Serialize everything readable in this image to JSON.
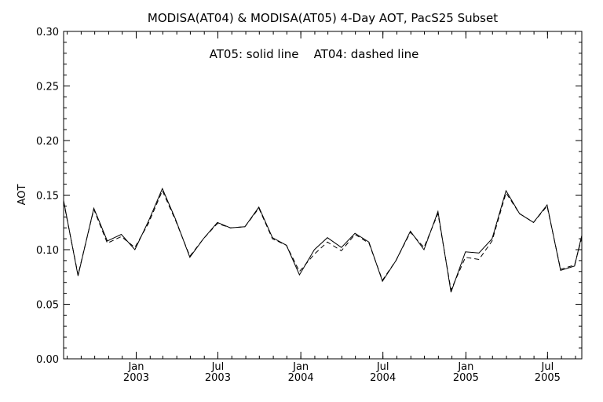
{
  "chart_data": {
    "type": "line",
    "title": "MODISA(AT04) & MODISA(AT05) 4-Day AOT, PacS25 Subset",
    "annotation": "AT05: solid line    AT04: dashed line",
    "xlabel": "",
    "ylabel": "AOT",
    "ylim": [
      0.0,
      0.3
    ],
    "yticks": [
      "0.00",
      "0.05",
      "0.10",
      "0.15",
      "0.20",
      "0.25",
      "0.30"
    ],
    "xlim": [
      "2002-07-24",
      "2005-09-15"
    ],
    "xticks": [
      {
        "date": "2003-01-01",
        "month": "Jan",
        "year": "2003"
      },
      {
        "date": "2003-07-01",
        "month": "Jul",
        "year": "2003"
      },
      {
        "date": "2004-01-01",
        "month": "Jan",
        "year": "2004"
      },
      {
        "date": "2004-07-01",
        "month": "Jul",
        "year": "2004"
      },
      {
        "date": "2005-01-01",
        "month": "Jan",
        "year": "2005"
      },
      {
        "date": "2005-07-01",
        "month": "Jul",
        "year": "2005"
      }
    ],
    "grid": false,
    "series": [
      {
        "name": "AT05",
        "style": "solid",
        "x": [
          "2002-07-24",
          "2002-08-25",
          "2002-09-29",
          "2002-10-29",
          "2002-11-29",
          "2002-12-29",
          "2003-01-28",
          "2003-02-28",
          "2003-03-29",
          "2003-04-30",
          "2003-05-30",
          "2003-06-30",
          "2003-07-29",
          "2003-08-30",
          "2003-09-30",
          "2003-10-30",
          "2003-11-30",
          "2003-12-29",
          "2004-01-31",
          "2004-02-29",
          "2004-03-31",
          "2004-04-30",
          "2004-05-31",
          "2004-06-30",
          "2004-07-30",
          "2004-08-31",
          "2004-09-30",
          "2004-10-31",
          "2004-11-29",
          "2004-12-31",
          "2005-01-30",
          "2005-02-28",
          "2005-03-31",
          "2005-04-30",
          "2005-05-31",
          "2005-06-30",
          "2005-07-30",
          "2005-08-30",
          "2005-09-15"
        ],
        "y": [
          0.145,
          0.076,
          0.138,
          0.108,
          0.114,
          0.1,
          0.126,
          0.156,
          0.128,
          0.093,
          0.11,
          0.125,
          0.12,
          0.121,
          0.139,
          0.111,
          0.104,
          0.077,
          0.1,
          0.111,
          0.102,
          0.115,
          0.107,
          0.071,
          0.09,
          0.117,
          0.1,
          0.135,
          0.061,
          0.098,
          0.097,
          0.11,
          0.154,
          0.133,
          0.125,
          0.141,
          0.081,
          0.085,
          0.113
        ]
      },
      {
        "name": "AT04",
        "style": "dashed",
        "x": [
          "2002-07-24",
          "2002-08-25",
          "2002-09-29",
          "2002-10-29",
          "2002-11-29",
          "2002-12-29",
          "2003-01-28",
          "2003-02-28",
          "2003-03-29",
          "2003-04-30",
          "2003-05-30",
          "2003-06-30",
          "2003-07-29",
          "2003-08-30",
          "2003-09-30",
          "2003-10-30",
          "2003-11-30",
          "2003-12-29",
          "2004-01-31",
          "2004-02-29",
          "2004-03-31",
          "2004-04-30",
          "2004-05-31",
          "2004-06-30",
          "2004-07-30",
          "2004-08-31",
          "2004-09-30",
          "2004-10-31",
          "2004-11-29",
          "2004-12-31",
          "2005-01-30",
          "2005-02-28",
          "2005-03-31",
          "2005-04-30",
          "2005-05-31",
          "2005-06-30",
          "2005-07-30",
          "2005-08-30",
          "2005-09-15"
        ],
        "y": [
          0.144,
          0.077,
          0.137,
          0.106,
          0.112,
          0.102,
          0.124,
          0.154,
          0.127,
          0.094,
          0.11,
          0.124,
          0.12,
          0.121,
          0.138,
          0.11,
          0.104,
          0.08,
          0.096,
          0.107,
          0.099,
          0.114,
          0.106,
          0.072,
          0.09,
          0.116,
          0.102,
          0.133,
          0.063,
          0.093,
          0.091,
          0.108,
          0.152,
          0.133,
          0.125,
          0.14,
          0.082,
          0.086,
          0.111
        ]
      }
    ]
  }
}
